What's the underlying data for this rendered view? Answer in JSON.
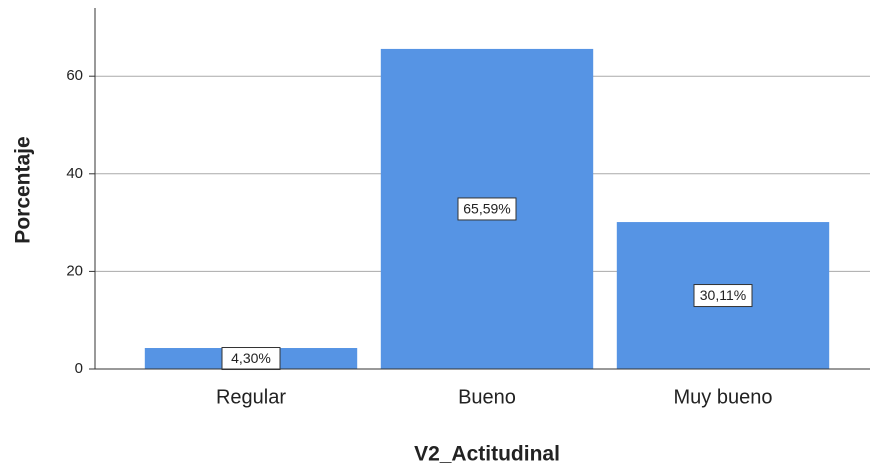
{
  "chart_data": {
    "type": "bar",
    "categories": [
      "Regular",
      "Bueno",
      "Muy bueno"
    ],
    "values": [
      4.3,
      65.59,
      30.11
    ],
    "value_labels": [
      "4,30%",
      "65,59%",
      "30,11%"
    ],
    "color": "#5694e4",
    "x_label": "V2_Actitudinal",
    "y_label": "Porcentaje",
    "ylim": [
      0,
      75
    ],
    "yticks": [
      0,
      20,
      40,
      60
    ],
    "grid": true
  }
}
